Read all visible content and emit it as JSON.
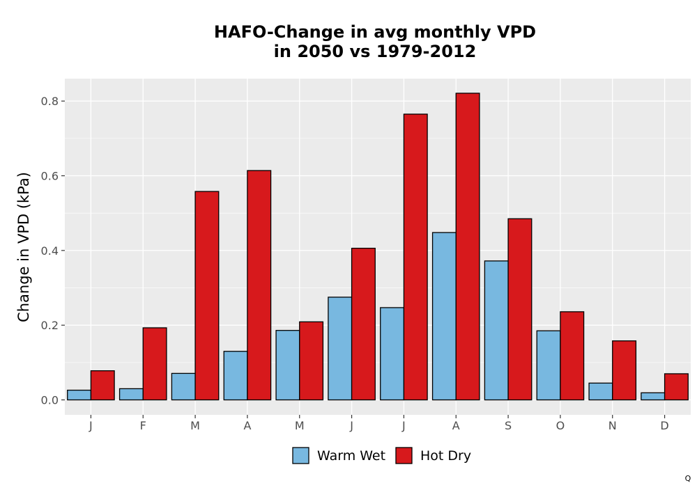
{
  "chart_data": {
    "type": "bar",
    "title_lines": [
      "HAFO-Change in avg monthly VPD",
      "in 2050 vs 1979-2012"
    ],
    "xlabel": "",
    "ylabel": "Change in VPD (kPa)",
    "categories": [
      "J",
      "F",
      "M",
      "A",
      "M",
      "J",
      "J",
      "A",
      "S",
      "O",
      "N",
      "D"
    ],
    "series": [
      {
        "name": "Warm Wet",
        "color": "#78B8E0",
        "values": [
          0.026,
          0.03,
          0.071,
          0.13,
          0.186,
          0.275,
          0.247,
          0.448,
          0.372,
          0.185,
          0.045,
          0.019
        ]
      },
      {
        "name": "Hot Dry",
        "color": "#D7191C",
        "values": [
          0.078,
          0.193,
          0.558,
          0.614,
          0.209,
          0.406,
          0.765,
          0.821,
          0.485,
          0.236,
          0.158,
          0.07
        ]
      }
    ],
    "ylim": [
      -0.04,
      0.86
    ],
    "yticks": [
      0.0,
      0.2,
      0.4,
      0.6,
      0.8
    ],
    "ytick_labels": [
      "0.0",
      "0.2",
      "0.4",
      "0.6",
      "0.8"
    ],
    "grid": true,
    "legend_position": "bottom",
    "panel_background": "#EBEBEB"
  },
  "corner_mark": "Q"
}
